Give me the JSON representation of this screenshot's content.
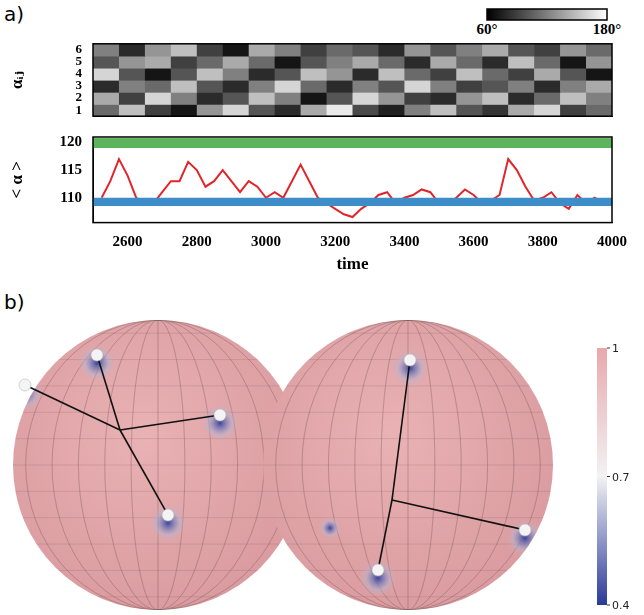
{
  "panel_labels": [
    "a)",
    "b)"
  ],
  "chart_data": [
    {
      "type": "heatmap",
      "y_label": "αᵢⱼ",
      "tick_labels": "y",
      "xlim": [
        2500,
        4000
      ],
      "ylim": [
        0.5,
        6.5
      ],
      "yticks": [
        1,
        2,
        3,
        4,
        5,
        6
      ],
      "x_edges": [
        2500,
        2575,
        2650,
        2725,
        2800,
        2875,
        2950,
        3025,
        3100,
        3175,
        3250,
        3325,
        3400,
        3475,
        3550,
        3625,
        3700,
        3775,
        3850,
        3925,
        4000
      ],
      "y": [
        1,
        2,
        3,
        4,
        5,
        6
      ],
      "cells": [
        [
          110,
          150,
          90,
          70,
          130,
          160,
          100,
          80,
          140,
          170,
          95,
          75,
          120,
          150,
          100,
          85,
          140,
          160,
          90,
          110
        ],
        [
          140,
          90,
          160,
          120,
          80,
          100,
          150,
          120,
          70,
          100,
          160,
          130,
          90,
          80,
          130,
          150,
          80,
          110,
          150,
          120
        ],
        [
          80,
          120,
          110,
          150,
          100,
          80,
          120,
          160,
          110,
          80,
          120,
          100,
          160,
          120,
          90,
          100,
          120,
          80,
          120,
          140
        ],
        [
          160,
          100,
          70,
          100,
          150,
          120,
          80,
          100,
          150,
          130,
          80,
          150,
          110,
          90,
          150,
          110,
          90,
          140,
          100,
          70
        ],
        [
          100,
          130,
          140,
          90,
          110,
          140,
          110,
          70,
          100,
          120,
          140,
          110,
          80,
          140,
          110,
          80,
          150,
          110,
          70,
          130
        ],
        [
          120,
          80,
          130,
          150,
          90,
          70,
          140,
          120,
          90,
          110,
          100,
          80,
          130,
          100,
          120,
          140,
          100,
          90,
          130,
          110
        ]
      ],
      "colorbar": {
        "range": [
          60,
          180
        ],
        "ticks": [
          {
            "value": 60,
            "label": "60°"
          },
          {
            "value": 180,
            "label": "180°"
          }
        ]
      }
    },
    {
      "type": "line",
      "x_label": "time",
      "y_label": "< α >",
      "grid": false,
      "xlim": [
        2500,
        4000
      ],
      "ylim": [
        105.5,
        121
      ],
      "xticks": [
        2600,
        2800,
        3000,
        3200,
        3400,
        3600,
        3800,
        4000
      ],
      "yticks": [
        110,
        115,
        120
      ],
      "x": [
        2525,
        2550,
        2575,
        2600,
        2625,
        2650,
        2675,
        2700,
        2725,
        2750,
        2775,
        2800,
        2825,
        2850,
        2875,
        2900,
        2925,
        2950,
        2975,
        3000,
        3025,
        3050,
        3075,
        3100,
        3125,
        3150,
        3175,
        3200,
        3225,
        3250,
        3275,
        3300,
        3325,
        3350,
        3375,
        3400,
        3425,
        3450,
        3475,
        3500,
        3525,
        3550,
        3575,
        3600,
        3625,
        3650,
        3675,
        3700,
        3725,
        3750,
        3775,
        3800,
        3825,
        3850,
        3875,
        3900,
        3925,
        3950,
        3975
      ],
      "series": [
        {
          "color": "#e0262a",
          "values": [
            110,
            113,
            117,
            114,
            110,
            109,
            109,
            111,
            113,
            113,
            116.5,
            115,
            112,
            113,
            115,
            113,
            111,
            113,
            112,
            110,
            111,
            110,
            113,
            116,
            113,
            110,
            109,
            108,
            107,
            106.5,
            108,
            109,
            110.5,
            111,
            109,
            110,
            110.5,
            111.5,
            111,
            109,
            109,
            110,
            111.5,
            110.5,
            109,
            109.5,
            110.5,
            117,
            115,
            112,
            109.5,
            110,
            111,
            109,
            108,
            110.5,
            109,
            110,
            109
          ]
        }
      ],
      "bands": [
        {
          "from": 119,
          "to": 120.8,
          "color": "#5cb55c"
        },
        {
          "from": 108.5,
          "to": 110,
          "color": "#3c8dc8"
        }
      ]
    }
  ],
  "sphere_colorbar": {
    "range": [
      0.4,
      1
    ],
    "ticks": [
      1,
      0.7,
      0.4
    ]
  }
}
